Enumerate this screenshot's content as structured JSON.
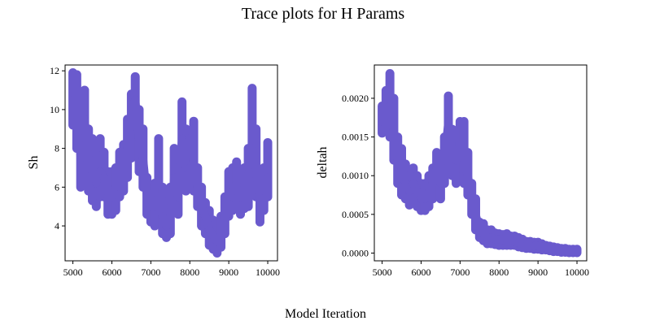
{
  "figure": {
    "suptitle": "Trace plots for H Params",
    "xlabel": "Model Iteration"
  },
  "colors": {
    "points": "#6a5acd"
  },
  "chart_data": [
    {
      "type": "scatter",
      "ylabel": "Sh",
      "xlim": [
        4800,
        10250
      ],
      "ylim": [
        2.2,
        12.3
      ],
      "xticks": [
        5000,
        6000,
        7000,
        8000,
        9000,
        10000
      ],
      "xticklabels": [
        "5000",
        "6000",
        "7000",
        "8000",
        "9000",
        "10000"
      ],
      "yticks": [
        4,
        6,
        8,
        10,
        12
      ],
      "yticklabels": [
        "4",
        "6",
        "8",
        "10",
        "12"
      ],
      "grid": false,
      "x": [
        5000,
        5100,
        5200,
        5300,
        5400,
        5500,
        5600,
        5700,
        5800,
        5900,
        6000,
        6100,
        6200,
        6300,
        6400,
        6500,
        6600,
        6700,
        6800,
        6900,
        7000,
        7100,
        7200,
        7300,
        7400,
        7500,
        7600,
        7700,
        7800,
        7900,
        8000,
        8100,
        8200,
        8300,
        8400,
        8500,
        8600,
        8700,
        8800,
        8900,
        9000,
        9100,
        9200,
        9300,
        9400,
        9500,
        9600,
        9700,
        9800,
        9900,
        10000
      ],
      "y": [
        10.5,
        10.0,
        7.5,
        9.5,
        7.5,
        6.8,
        6.2,
        6.8,
        6.5,
        5.5,
        5.5,
        6.0,
        6.5,
        6.8,
        8.0,
        9.5,
        10.5,
        8.5,
        7.5,
        5.5,
        5.0,
        5.0,
        5.5,
        4.5,
        4.0,
        4.5,
        6.5,
        5.5,
        8.5,
        7.0,
        7.0,
        7.0,
        6.0,
        5.0,
        4.5,
        3.8,
        3.5,
        3.2,
        3.5,
        4.5,
        5.5,
        5.8,
        6.2,
        5.5,
        6.0,
        6.5,
        8.0,
        7.0,
        5.5,
        5.8,
        6.5
      ],
      "y_low": [
        9.2,
        8.0,
        6.0,
        7.0,
        5.8,
        5.3,
        5.0,
        5.5,
        5.5,
        4.6,
        4.6,
        4.8,
        5.5,
        5.8,
        6.5,
        7.5,
        8.0,
        6.8,
        6.0,
        4.6,
        4.2,
        4.0,
        4.2,
        3.6,
        3.4,
        3.6,
        5.0,
        4.6,
        7.0,
        5.8,
        6.0,
        5.8,
        5.0,
        4.0,
        3.6,
        3.0,
        2.8,
        2.6,
        2.9,
        3.6,
        4.5,
        4.8,
        5.2,
        4.6,
        4.9,
        5.0,
        6.0,
        5.5,
        4.2,
        4.8,
        5.5
      ],
      "y_high": [
        11.9,
        11.8,
        9.5,
        11.0,
        9.0,
        8.5,
        7.5,
        8.5,
        7.8,
        6.8,
        6.8,
        7.0,
        7.8,
        8.2,
        9.5,
        10.8,
        11.7,
        10.0,
        9.0,
        6.5,
        6.0,
        6.2,
        8.5,
        6.0,
        5.2,
        6.0,
        8.0,
        7.0,
        10.4,
        9.0,
        8.5,
        9.4,
        7.0,
        6.0,
        5.2,
        4.8,
        4.3,
        4.0,
        4.5,
        5.5,
        6.8,
        7.0,
        7.3,
        6.8,
        7.0,
        8.0,
        11.1,
        9.0,
        6.8,
        7.0,
        8.3
      ]
    },
    {
      "type": "scatter",
      "ylabel": "deltah",
      "xlim": [
        4800,
        10250
      ],
      "ylim": [
        -0.0001,
        0.00243
      ],
      "xticks": [
        5000,
        6000,
        7000,
        8000,
        9000,
        10000
      ],
      "xticklabels": [
        "5000",
        "6000",
        "7000",
        "8000",
        "9000",
        "10000"
      ],
      "yticks": [
        0,
        0.0005,
        0.001,
        0.0015,
        0.002
      ],
      "yticklabels": [
        "0.0000",
        "0.0005",
        "0.0010",
        "0.0015",
        "0.0020"
      ],
      "grid": false,
      "x": [
        5000,
        5100,
        5200,
        5300,
        5400,
        5500,
        5600,
        5700,
        5800,
        5900,
        6000,
        6100,
        6200,
        6300,
        6400,
        6500,
        6600,
        6700,
        6800,
        6900,
        7000,
        7100,
        7200,
        7300,
        7400,
        7500,
        7600,
        7700,
        7800,
        7900,
        8000,
        8100,
        8200,
        8300,
        8400,
        8500,
        8600,
        8700,
        8800,
        8900,
        9000,
        9100,
        9200,
        9300,
        9400,
        9500,
        9600,
        9700,
        9800,
        9900,
        10000
      ],
      "y": [
        0.0017,
        0.0018,
        0.0019,
        0.0016,
        0.0012,
        0.0011,
        0.0009,
        0.0008,
        0.0009,
        0.0008,
        0.0007,
        0.0007,
        0.0008,
        0.0009,
        0.0011,
        0.0009,
        0.0012,
        0.0017,
        0.0013,
        0.0012,
        0.0014,
        0.0012,
        0.001,
        0.0007,
        0.0005,
        0.0003,
        0.00025,
        0.0002,
        0.0002,
        0.00018,
        0.00018,
        0.00017,
        0.00016,
        0.00016,
        0.00015,
        0.00013,
        0.00012,
        0.0001,
        0.0001,
        9e-05,
        9e-05,
        8e-05,
        7e-05,
        6e-05,
        5e-05,
        4e-05,
        3e-05,
        3e-05,
        2e-05,
        2e-05,
        2e-05
      ],
      "y_low": [
        0.00155,
        0.0016,
        0.0015,
        0.0012,
        0.0009,
        0.00075,
        0.0007,
        0.00062,
        0.0007,
        0.0006,
        0.00055,
        0.00055,
        0.0006,
        0.0007,
        0.0008,
        0.0007,
        0.0009,
        0.0012,
        0.001,
        0.0009,
        0.0011,
        0.0009,
        0.00075,
        0.0005,
        0.0003,
        0.0002,
        0.00016,
        0.00012,
        0.00012,
        0.00011,
        0.0001,
        0.0001,
        0.0001,
        0.0001,
        0.0001,
        8e-05,
        7e-05,
        6e-05,
        6e-05,
        5e-05,
        5e-05,
        4e-05,
        4e-05,
        3e-05,
        2e-05,
        2e-05,
        1e-05,
        1e-05,
        5e-06,
        5e-06,
        5e-06
      ],
      "y_high": [
        0.0019,
        0.0021,
        0.00232,
        0.002,
        0.0015,
        0.00135,
        0.00115,
        0.001,
        0.0011,
        0.001,
        0.0009,
        0.0009,
        0.001,
        0.0011,
        0.0013,
        0.0011,
        0.0015,
        0.00203,
        0.0016,
        0.0015,
        0.0017,
        0.0017,
        0.0013,
        0.0009,
        0.0007,
        0.0004,
        0.00038,
        0.0003,
        0.0003,
        0.00026,
        0.00025,
        0.00024,
        0.00025,
        0.00022,
        0.00022,
        0.0002,
        0.00018,
        0.00015,
        0.00015,
        0.00014,
        0.00014,
        0.00012,
        0.0001,
        9e-05,
        8e-05,
        7e-05,
        6e-05,
        6e-05,
        5e-05,
        5e-05,
        5e-05
      ]
    }
  ]
}
